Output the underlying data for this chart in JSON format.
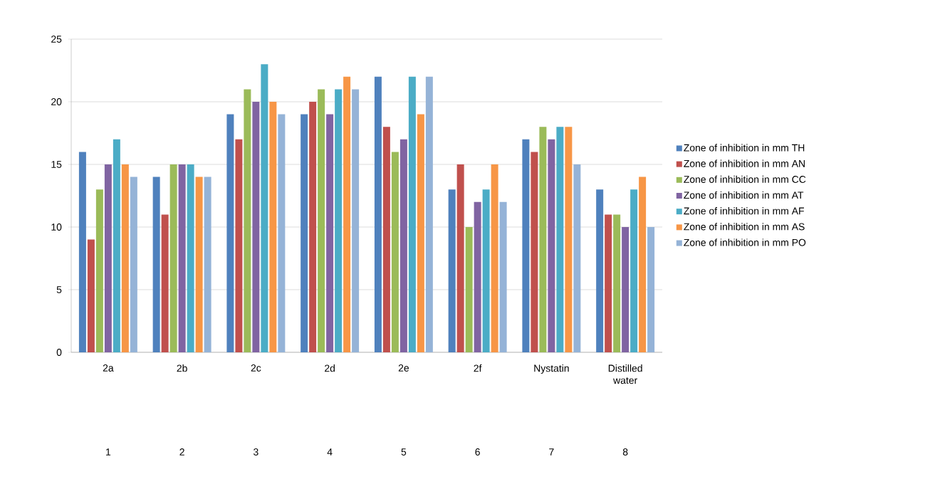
{
  "chart_data": {
    "type": "bar",
    "categories": [
      "2a",
      "2b",
      "2c",
      "2d",
      "2e",
      "2f",
      "Nystatin",
      "Distilled water"
    ],
    "annotations": [
      "1",
      "2",
      "3",
      "4",
      "5",
      "6",
      "7",
      "8"
    ],
    "series": [
      {
        "name": "Zone of inhibition in mm TH",
        "color": "#4f81bd",
        "values": [
          16,
          14,
          19,
          19,
          22,
          13,
          17,
          13
        ]
      },
      {
        "name": "Zone of inhibition in mm AN",
        "color": "#c0504d",
        "values": [
          9,
          11,
          17,
          20,
          18,
          15,
          16,
          11
        ]
      },
      {
        "name": "Zone of inhibition in mm CC",
        "color": "#9bbb59",
        "values": [
          13,
          15,
          21,
          21,
          16,
          10,
          18,
          11
        ]
      },
      {
        "name": "Zone of inhibition in mm AT",
        "color": "#8064a2",
        "values": [
          15,
          15,
          20,
          19,
          17,
          12,
          17,
          10
        ]
      },
      {
        "name": "Zone of inhibition in mm AF",
        "color": "#4bacc6",
        "values": [
          17,
          15,
          23,
          21,
          22,
          13,
          18,
          13
        ]
      },
      {
        "name": "Zone of inhibition in mm AS",
        "color": "#f79646",
        "values": [
          15,
          14,
          20,
          22,
          19,
          15,
          18,
          14
        ]
      },
      {
        "name": "Zone of inhibition in mm PO",
        "color": "#95b3d7",
        "values": [
          14,
          14,
          19,
          21,
          22,
          12,
          15,
          10
        ]
      }
    ],
    "ylim": [
      0,
      25
    ],
    "yticks": [
      0,
      5,
      10,
      15,
      20,
      25
    ],
    "grid": "y",
    "legend": "right"
  }
}
